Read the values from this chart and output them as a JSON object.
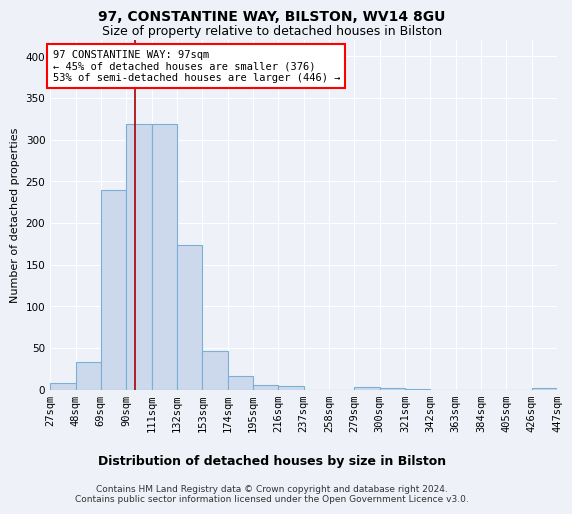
{
  "title": "97, CONSTANTINE WAY, BILSTON, WV14 8GU",
  "subtitle": "Size of property relative to detached houses in Bilston",
  "xlabel": "Distribution of detached houses by size in Bilston",
  "ylabel": "Number of detached properties",
  "bar_color": "#ccd9ed",
  "bar_edge_color": "#7bafd4",
  "background_color": "#eef2f8",
  "vline_color": "#aa0000",
  "vline_x": 97,
  "annotation_text": "97 CONSTANTINE WAY: 97sqm\n← 45% of detached houses are smaller (376)\n53% of semi-detached houses are larger (446) →",
  "footer_text": "Contains HM Land Registry data © Crown copyright and database right 2024.\nContains public sector information licensed under the Open Government Licence v3.0.",
  "bin_edges": [
    27,
    48,
    69,
    90,
    111,
    132,
    153,
    174,
    195,
    216,
    237,
    258,
    279,
    300,
    321,
    342,
    363,
    384,
    405,
    426,
    447
  ],
  "bar_heights": [
    8,
    33,
    239,
    319,
    319,
    174,
    46,
    16,
    5,
    4,
    0,
    0,
    3,
    2,
    1,
    0,
    0,
    0,
    0,
    2
  ],
  "ylim": [
    0,
    420
  ],
  "yticks": [
    0,
    50,
    100,
    150,
    200,
    250,
    300,
    350,
    400
  ],
  "grid_color": "#ffffff",
  "title_fontsize": 10,
  "subtitle_fontsize": 9,
  "ylabel_fontsize": 8,
  "xlabel_fontsize": 9,
  "tick_fontsize": 7.5,
  "footer_fontsize": 6.5,
  "annot_fontsize": 7.5
}
